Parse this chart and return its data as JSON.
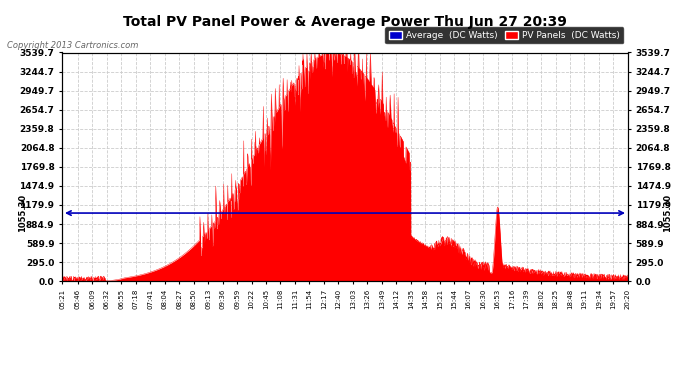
{
  "title": "Total PV Panel Power & Average Power Thu Jun 27 20:39",
  "copyright": "Copyright 2013 Cartronics.com",
  "background_color": "#ffffff",
  "plot_bg_color": "#ffffff",
  "avg_value": 1055.3,
  "avg_line_color": "#0000bb",
  "pv_fill_color": "#ff0000",
  "yticks": [
    0.0,
    295.0,
    589.9,
    884.9,
    1179.9,
    1474.9,
    1769.8,
    2064.8,
    2359.8,
    2654.7,
    2949.7,
    3244.7,
    3539.7
  ],
  "ymax": 3539.7,
  "ymin": 0.0,
  "legend_avg_color": "#0000cc",
  "legend_pv_color": "#ff0000",
  "legend_avg_label": "Average  (DC Watts)",
  "legend_pv_label": "PV Panels  (DC Watts)",
  "x_labels": [
    "05:21",
    "05:46",
    "06:09",
    "06:32",
    "06:55",
    "07:18",
    "07:41",
    "08:04",
    "08:27",
    "08:50",
    "09:13",
    "09:36",
    "09:59",
    "10:22",
    "10:45",
    "11:08",
    "11:31",
    "11:54",
    "12:17",
    "12:40",
    "13:03",
    "13:26",
    "13:49",
    "14:12",
    "14:35",
    "14:58",
    "15:21",
    "15:44",
    "16:07",
    "16:30",
    "16:53",
    "17:16",
    "17:39",
    "18:02",
    "18:25",
    "18:48",
    "19:11",
    "19:34",
    "19:57",
    "20:20"
  ],
  "grid_color": "#cccccc",
  "grid_linestyle": "--"
}
